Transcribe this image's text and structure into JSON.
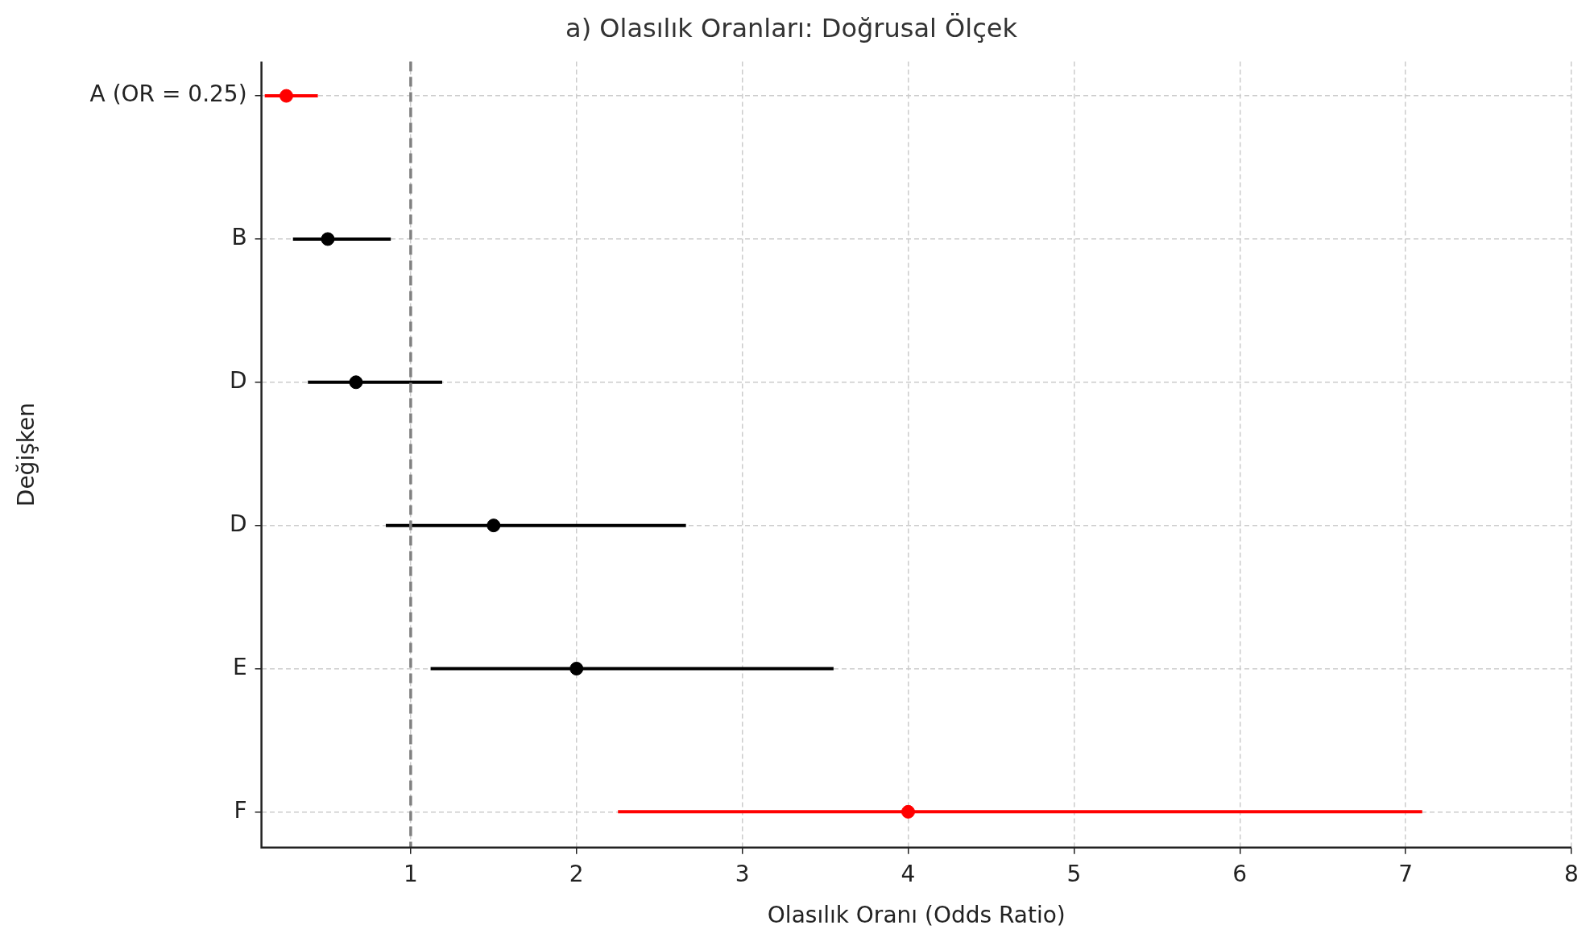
{
  "chart_data": {
    "type": "scatter",
    "orientation": "horizontal",
    "title": "a) Olasılık Oranları: Doğrusal Ölçek",
    "xlabel": "Olasılık Oranı (Odds Ratio)",
    "ylabel": "Değişken",
    "categories": [
      "A (OR = 0.25)",
      "B",
      "D",
      "D",
      "E",
      "F"
    ],
    "values": [
      0.25,
      0.5,
      0.67,
      1.5,
      2.0,
      4.0
    ],
    "errors": [
      [
        0.12,
        0.44
      ],
      [
        0.29,
        0.88
      ],
      [
        0.38,
        1.19
      ],
      [
        0.85,
        2.66
      ],
      [
        1.12,
        3.55
      ],
      [
        2.25,
        7.1
      ]
    ],
    "colors": [
      "#ff0000",
      "#000000",
      "#000000",
      "#000000",
      "#000000",
      "#ff0000"
    ],
    "xlim": [
      0.1,
      8
    ],
    "xticks": [
      1,
      2,
      3,
      4,
      5,
      6,
      7,
      8
    ],
    "ref_lines": [
      {
        "axis": "x",
        "value": 1,
        "color": "#808080",
        "line_style": "dashed"
      }
    ],
    "grid": true,
    "marker": "circle",
    "legend": false
  }
}
